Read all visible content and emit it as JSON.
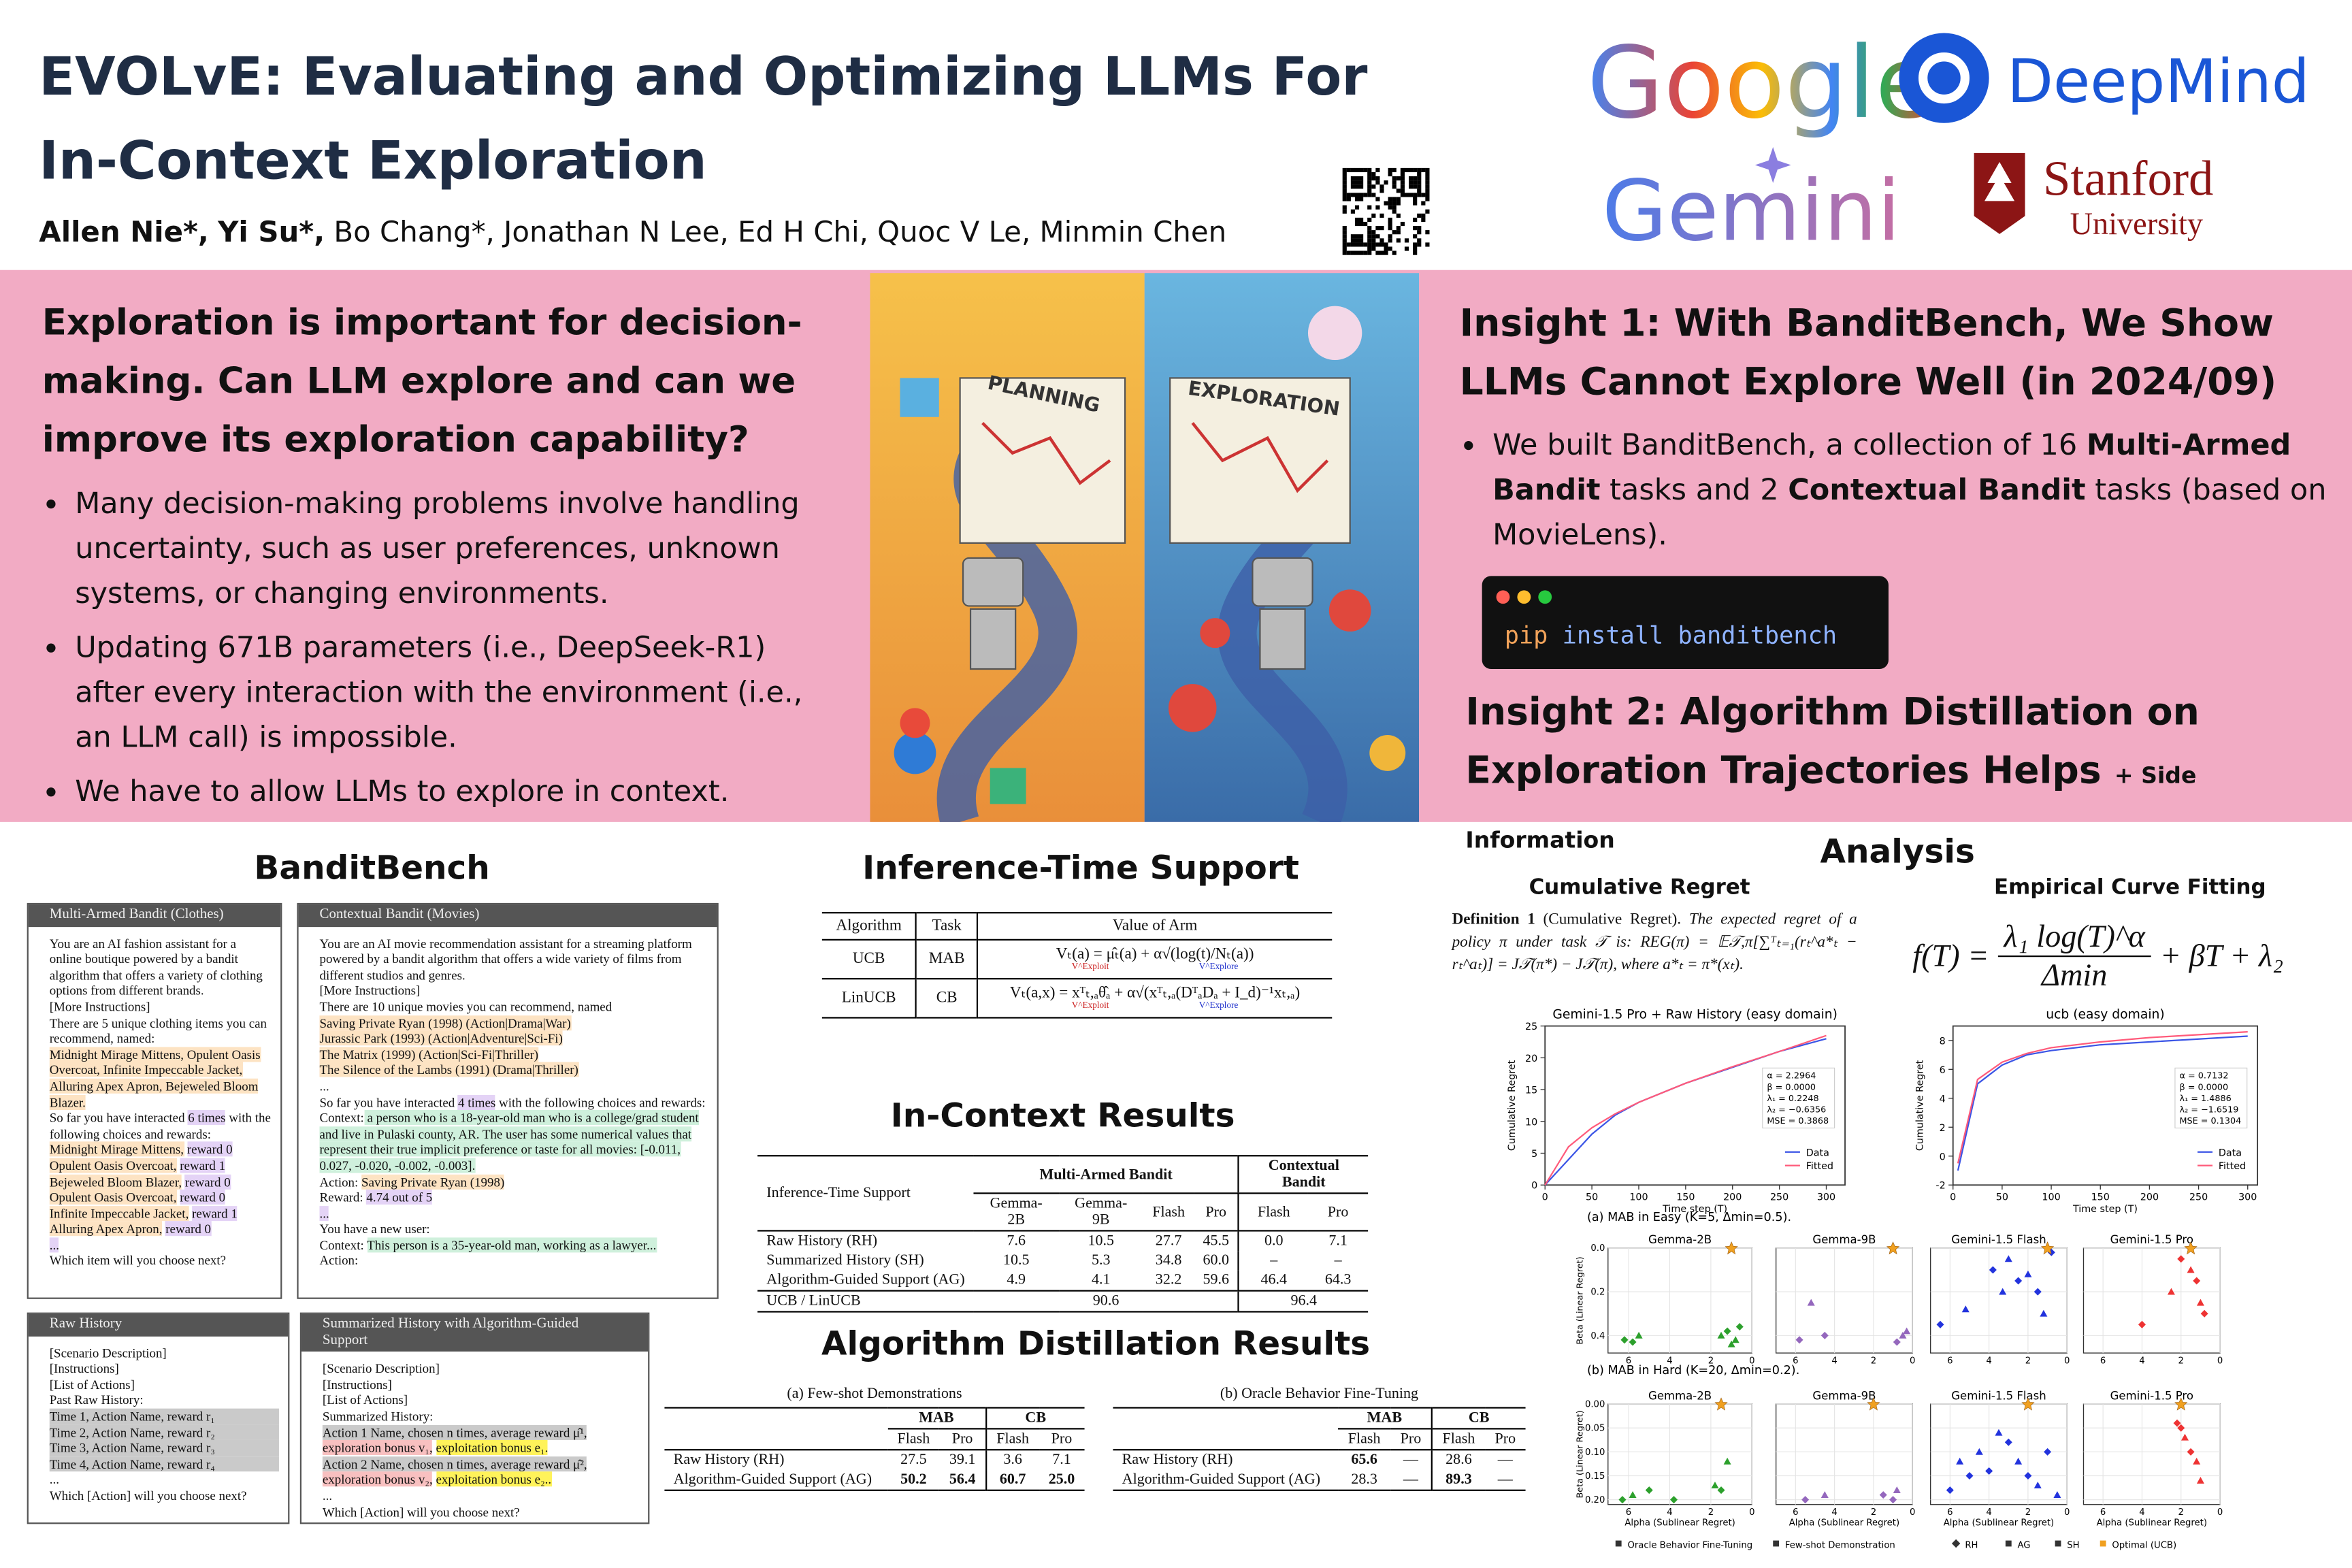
{
  "header": {
    "title": [
      "EVOLvE: Evaluating and Optimizing LLMs For",
      "In-Context Exploration"
    ],
    "authors": [
      {
        "name": "Allen Nie*,",
        "bold": true
      },
      {
        "name": "Yi Su*,",
        "bold": true
      },
      {
        "name": "Bo Chang*,",
        "bold": false
      },
      {
        "name": "Jonathan N Lee,",
        "bold": false
      },
      {
        "name": "Ed H Chi,",
        "bold": false
      },
      {
        "name": "Quoc V Le,",
        "bold": false
      },
      {
        "name": "Minmin Chen",
        "bold": false
      }
    ],
    "logos": {
      "google": "Google",
      "deepmind": "DeepMind",
      "gemini": "Gemini",
      "stanford": "Stanford",
      "university": "University"
    }
  },
  "intro": {
    "heading": "Exploration is important for decision-making. Can LLM explore and can we improve its exploration capability?",
    "bullets": [
      "Many decision-making problems involve handling uncertainty, such as user preferences, unknown systems, or changing environments.",
      "Updating 671B parameters (i.e., DeepSeek-R1) after every interaction with the environment (i.e., an LLM call) is impossible.",
      "We have to allow LLMs to explore in context."
    ]
  },
  "illustration": {
    "left": "PLANNING",
    "right": "EXPLORATION"
  },
  "insight1": {
    "heading": "Insight 1: With BanditBench, We Show LLMs Cannot Explore Well (in 2024/09)",
    "bullet": [
      "We built BanditBench, a collection of 16 ",
      "Multi-Armed Bandit",
      " tasks and 2 ",
      "Contextual Bandit",
      " tasks (based on MovieLens)."
    ],
    "code": [
      "pip",
      " install banditbench"
    ]
  },
  "insight2": {
    "heading": "Insight 2: Algorithm Distillation on Exploration Trajectories Helps",
    "note": "+ Side Information"
  },
  "banditbench": {
    "title": "BanditBench",
    "mab": {
      "header": "Multi-Armed Bandit (Clothes)",
      "text": [
        "You are an AI fashion assistant for a online boutique powered by a bandit algorithm that offers a variety of clothing options from different brands.",
        "[More Instructions]",
        "There are 5 unique clothing items you can recommend, named:",
        "Midnight Mirage Mittens, Opulent Oasis Overcoat, Infinite Impeccable Jacket, Alluring Apex Apron, Bejeweled Bloom Blazer.",
        "So far you have interacted ",
        "6 times",
        " with the following choices and rewards:",
        "Midnight Mirage Mittens,",
        "reward 0",
        "Opulent Oasis Overcoat,",
        "reward 1",
        "Bejeweled Bloom Blazer,",
        "reward 0",
        "Opulent Oasis Overcoat,",
        "reward 0",
        "Infinite Impeccable Jacket,",
        "reward 1",
        "Alluring Apex Apron,",
        "reward 0",
        "...",
        "Which item will you choose next?"
      ]
    },
    "cb": {
      "header": "Contextual Bandit (Movies)",
      "text": [
        "You are an AI movie recommendation assistant for a streaming platform powered by a bandit algorithm that offers a wide variety of films from different studios and genres.",
        "[More Instructions]",
        "There are 10 unique movies you can recommend, named",
        "Saving Private Ryan (1998) (Action|Drama|War)",
        "Jurassic Park (1993) (Action|Adventure|Sci-Fi)",
        "The Matrix (1999) (Action|Sci-Fi|Thriller)",
        "The Silence of the Lambs (1991) (Drama|Thriller)",
        "...",
        "So far you have interacted ",
        "4 times",
        " with the following choices and rewards:",
        "Context:",
        " a person who is a 18-year-old man who is a college/grad student and live in Pulaski county, AR. The user has some numerical values that represent their true implicit preference or taste for all movies: [-0.011, 0.027, -0.020, -0.002, -0.003].",
        "Action:",
        "Saving Private Ryan (1998)",
        "Reward:",
        "4.74 out of 5",
        "...",
        "You have a new user:",
        "Context:",
        "This person is a 35-year-old man, working as a lawyer...",
        "Action:"
      ]
    },
    "raw": {
      "header": "Raw History",
      "text": [
        "[Scenario Description]",
        "[Instructions]",
        "[List of Actions]",
        "Past Raw History:",
        "Time 1, Action Name, reward r₁",
        "Time 2, Action Name, reward r₂",
        "Time 3, Action Name, reward r₃",
        "Time 4, Action Name, reward r₄",
        "...",
        "Which [Action] will you choose next?"
      ]
    },
    "summary": {
      "header": "Summarized History with Algorithm-Guided Support",
      "text": [
        "[Scenario Description]",
        "[Instructions]",
        "[List of Actions]",
        "Summarized History:",
        "Action 1 Name, chosen n times, average reward μ̂¹,",
        "exploration bonus v₁,",
        "exploitation bonus e₁.",
        "Action 2 Name, chosen n times, average reward μ̂²,",
        "exploration bonus v₂,",
        "exploitation bonus e₂..",
        "...",
        "Which [Action] will you choose next?"
      ]
    }
  },
  "inference": {
    "title": "Inference-Time Support",
    "columns": [
      "Algorithm",
      "Task",
      "Value of Arm"
    ],
    "rows": [
      {
        "cells": [
          "UCB",
          "MAB",
          "Vₜ(a) = μ̂ₜ(a) + α√(log(t)/Nₜ(a))"
        ],
        "notes": [
          "V^Exploit",
          "V^Explore"
        ]
      },
      {
        "cells": [
          "LinUCB",
          "CB",
          "Vₜ(a,x) = xᵀₜ,ₐθ̂ₐ + α√(xᵀₜ,ₐ(DᵀₐDₐ + I_d)⁻¹xₜ,ₐ)"
        ],
        "notes": [
          "V^Exploit",
          "V^Explore"
        ]
      }
    ]
  },
  "incontext": {
    "title": "In-Context Results",
    "corner": "Inference-Time Support",
    "groups": [
      "Multi-Armed Bandit",
      "Contextual Bandit"
    ],
    "columns": [
      "Gemma-2B",
      "Gemma-9B",
      "Flash",
      "Pro",
      "Flash",
      "Pro"
    ],
    "rows": [
      [
        "Raw History (RH)",
        "7.6",
        "10.5",
        "27.7",
        "45.5",
        "0.0",
        "7.1"
      ],
      [
        "Summarized History (SH)",
        "10.5",
        "5.3",
        "34.8",
        "60.0",
        "–",
        "–"
      ],
      [
        "Algorithm-Guided Support (AG)",
        "4.9",
        "4.1",
        "32.2",
        "59.6",
        "46.4",
        "64.3"
      ]
    ],
    "footer": [
      "UCB / LinUCB",
      "90.6",
      "96.4"
    ]
  },
  "distill": {
    "title": "Algorithm Distillation Results",
    "tables": [
      {
        "caption": "(a) Few-shot Demonstrations",
        "groups": [
          "MAB",
          "CB"
        ],
        "columns": [
          "Flash",
          "Pro",
          "Flash",
          "Pro"
        ],
        "rows": [
          [
            "Raw History (RH)",
            "27.5",
            "39.1",
            "3.6",
            "7.1"
          ],
          [
            "Algorithm-Guided Support (AG)",
            "50.2",
            "56.4",
            "60.7",
            "25.0"
          ]
        ]
      },
      {
        "caption": "(b) Oracle Behavior Fine-Tuning",
        "groups": [
          "MAB",
          "CB"
        ],
        "columns": [
          "Flash",
          "Pro",
          "Flash",
          "Pro"
        ],
        "rows": [
          [
            "Raw History (RH)",
            "65.6",
            "—",
            "28.6",
            "—"
          ],
          [
            "Algorithm-Guided Support (AG)",
            "28.3",
            "—",
            "89.3",
            "—"
          ]
        ]
      }
    ]
  },
  "analysis": {
    "title": "Analysis",
    "regret_title": "Cumulative Regret",
    "fitting_title": "Empirical Curve Fitting",
    "definition": [
      "Definition 1",
      " (Cumulative Regret). ",
      "The expected regret of a policy π under task 𝒯 is: REG(π) = 𝔼𝒯,π[∑ᵀₜ₌₁(rₜ^a*ₜ − rₜ^aₜ)] = J𝒯(π*) − J𝒯(π), where a*ₜ = π*(xₜ)."
    ],
    "formula": {
      "left": "f(T) =",
      "numerator": "λ₁ log(T)^α",
      "denominator": "Δmin",
      "right": "+ βT + λ₂"
    },
    "charts": [
      {
        "type": "line",
        "title": "Gemini-1.5 Pro + Raw History (easy domain)",
        "xlabel": "Time step (T)",
        "ylabel": "Cumulative Regret",
        "x": [
          0,
          25,
          50,
          75,
          100,
          150,
          200,
          250,
          300
        ],
        "series": [
          {
            "name": "Data",
            "color": "#3b55e6",
            "values": [
              0,
              4,
              8,
              11,
              13,
              16,
              18.5,
              21,
              23
            ]
          },
          {
            "name": "Fitted",
            "color": "#ff5a7a",
            "values": [
              0,
              6,
              9,
              11.2,
              13,
              16,
              18.6,
              21,
              23.5
            ]
          }
        ],
        "xlim": [
          0,
          320
        ],
        "ylim": [
          0,
          25
        ],
        "xticks": [
          0,
          50,
          100,
          150,
          200,
          250,
          300
        ],
        "yticks": [
          0,
          5,
          10,
          15,
          20,
          25
        ],
        "params": [
          "α = 2.2964",
          "β = 0.0000",
          "λ₁ = 0.2248",
          "λ₂ = −0.6356",
          "MSE = 0.3868"
        ]
      },
      {
        "type": "line",
        "title": "ucb (easy domain)",
        "xlabel": "Time step (T)",
        "ylabel": "Cumulative Regret",
        "x": [
          5,
          25,
          50,
          75,
          100,
          150,
          200,
          250,
          300
        ],
        "series": [
          {
            "name": "Data",
            "color": "#3b55e6",
            "values": [
              -1,
              5,
              6.3,
              7,
              7.3,
              7.7,
              7.9,
              8.1,
              8.3
            ]
          },
          {
            "name": "Fitted",
            "color": "#ff5a7a",
            "values": [
              -0.5,
              5.3,
              6.5,
              7.1,
              7.5,
              7.9,
              8.2,
              8.4,
              8.6
            ]
          }
        ],
        "xlim": [
          0,
          310
        ],
        "ylim": [
          -2,
          9
        ],
        "xticks": [
          0,
          50,
          100,
          150,
          200,
          250,
          300
        ],
        "yticks": [
          -2,
          0,
          2,
          4,
          6,
          8
        ],
        "params": [
          "α = 0.7132",
          "β = 0.0000",
          "λ₁ = 1.4886",
          "λ₂ = −1.6519",
          "MSE = 0.1304"
        ]
      }
    ],
    "scatter": {
      "type": "scatter",
      "xlabel": "Alpha (Sublinear Regret)",
      "ylabel": "Beta (Linear Regret)",
      "xlim": [
        7,
        0
      ],
      "xticks": [
        6,
        4,
        2,
        0
      ],
      "groups": [
        {
          "caption": "(a) MAB in Easy (K=5, Δmin=0.5).",
          "ylim": [
            0.48,
            0
          ],
          "yticks": [
            {
              "value": 0,
              "label": "0.0"
            },
            0.2,
            0.4
          ],
          "panels": [
            {
              "title": "Gemma-2B",
              "color": "#2ca02c",
              "x": [
                6.2,
                5.5,
                5.8,
                1.5,
                1.2,
                0.8,
                0.6,
                1.0
              ],
              "y": [
                0.42,
                0.4,
                0.43,
                0.4,
                0.38,
                0.42,
                0.36,
                0.44
              ],
              "optimal": {
                "x": 1.0,
                "y": 0
              }
            },
            {
              "title": "Gemma-9B",
              "color": "#9467bd",
              "x": [
                5.8,
                5.2,
                4.5,
                0.5,
                0.8,
                0.3
              ],
              "y": [
                0.42,
                0.25,
                0.4,
                0.4,
                0.43,
                0.38
              ],
              "optimal": {
                "x": 1.0,
                "y": 0
              }
            },
            {
              "title": "Gemini-1.5 Flash",
              "color": "#2233dd",
              "x": [
                6.5,
                5.2,
                3.8,
                3.0,
                2.5,
                2.0,
                1.5,
                1.2,
                0.8,
                3.3
              ],
              "y": [
                0.35,
                0.28,
                0.1,
                0.05,
                0.15,
                0.12,
                0.2,
                0.3,
                0.02,
                0.2
              ],
              "optimal": {
                "x": 1.0,
                "y": 0
              }
            },
            {
              "title": "Gemini-1.5 Pro",
              "color": "#ee3333",
              "x": [
                2.0,
                1.5,
                1.2,
                1.0,
                0.8,
                2.5,
                4.0
              ],
              "y": [
                0.05,
                0.1,
                0.15,
                0.25,
                0.3,
                0.2,
                0.35
              ],
              "optimal": {
                "x": 1.5,
                "y": 0
              }
            }
          ]
        },
        {
          "caption": "(b) MAB in Hard (K=20, Δmin=0.2).",
          "ylim": [
            0.21,
            0
          ],
          "yticks": [
            {
              "value": 0,
              "label": "0.00"
            },
            0.05,
            {
              "value": 0.1,
              "label": "0.10"
            },
            0.15,
            {
              "value": 0.2,
              "label": "0.20"
            }
          ],
          "panels": [
            {
              "title": "Gemma-2B",
              "color": "#2ca02c",
              "x": [
                6.3,
                5.8,
                5.0,
                1.8,
                1.5,
                1.2,
                3.8
              ],
              "y": [
                0.2,
                0.19,
                0.18,
                0.17,
                0.18,
                0.12,
                0.2
              ],
              "optimal": {
                "x": 1.5,
                "y": 0
              }
            },
            {
              "title": "Gemma-9B",
              "color": "#9467bd",
              "x": [
                5.5,
                4.5,
                1.0,
                0.8,
                1.5
              ],
              "y": [
                0.2,
                0.19,
                0.2,
                0.18,
                0.19
              ],
              "optimal": {
                "x": 2.0,
                "y": 0
              }
            },
            {
              "title": "Gemini-1.5 Flash",
              "color": "#2233dd",
              "x": [
                6,
                5.5,
                5,
                4.5,
                4,
                3.5,
                3,
                2.5,
                2,
                1.5,
                1,
                0.5
              ],
              "y": [
                0.18,
                0.12,
                0.15,
                0.1,
                0.14,
                0.06,
                0.08,
                0.12,
                0.15,
                0.17,
                0.1,
                0.19
              ],
              "optimal": {
                "x": 2.0,
                "y": 0
              }
            },
            {
              "title": "Gemini-1.5 Pro",
              "color": "#ee3333",
              "x": [
                2.0,
                1.8,
                1.5,
                1.2,
                2.2,
                1.0
              ],
              "y": [
                0.05,
                0.07,
                0.1,
                0.12,
                0.04,
                0.16
              ],
              "optimal": {
                "x": 2.0,
                "y": 0
              }
            }
          ]
        }
      ],
      "legend": [
        "Oracle Behavior Fine-Tuning",
        "Few-shot Demonstration",
        "RH",
        "AG",
        "SH",
        "Optimal (UCB)"
      ]
    }
  }
}
